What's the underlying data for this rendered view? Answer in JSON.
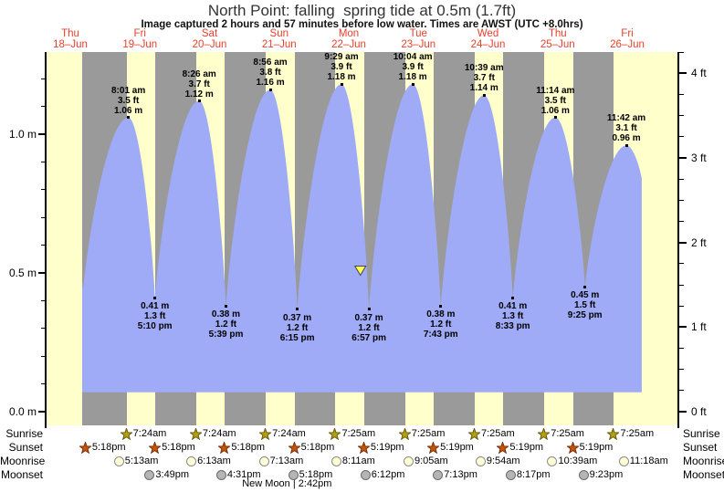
{
  "header": {
    "title": "North Point: falling  spring tide at 0.5m (1.7ft)",
    "subtitle": "Image captured 2 hours and 57 minutes before low water. Times are AWST (UTC +8.0hrs)"
  },
  "chart_data": {
    "type": "area",
    "title": "North Point: falling  spring tide at 0.5m (1.7ft)",
    "days": [
      {
        "name": "Thu",
        "date": "18–Jun"
      },
      {
        "name": "Fri",
        "date": "19–Jun"
      },
      {
        "name": "Sat",
        "date": "20–Jun"
      },
      {
        "name": "Sun",
        "date": "21–Jun"
      },
      {
        "name": "Mon",
        "date": "22–Jun"
      },
      {
        "name": "Tue",
        "date": "23–Jun"
      },
      {
        "name": "Wed",
        "date": "24–Jun"
      },
      {
        "name": "Thu",
        "date": "25–Jun"
      },
      {
        "name": "Fri",
        "date": "26–Jun"
      }
    ],
    "y_axis_left": {
      "unit": "m",
      "major_ticks": [
        0,
        0.5,
        1.0
      ],
      "labels": [
        "0.0 m",
        "0.5 m",
        "1.0 m"
      ],
      "minor_step": 0.1
    },
    "y_axis_right": {
      "unit": "ft",
      "major_ticks": [
        0,
        1,
        2,
        3,
        4
      ],
      "labels": [
        "0 ft",
        "1 ft",
        "2 ft",
        "3 ft",
        "4 ft"
      ],
      "minor_step": 0.25
    },
    "ylim_m": [
      -0.05,
      1.3
    ],
    "series_start": {
      "day": 0,
      "time": "4:05 pm",
      "m": 0.47
    },
    "series_end": {
      "day": 8,
      "time": "5:00 pm",
      "m": 0.84
    },
    "water_base_m": 0.07,
    "tide_events": [
      {
        "kind": "low",
        "day": 0,
        "time": "4:25 pm",
        "m": 0.44,
        "ft": 1.4,
        "annotated": false
      },
      {
        "kind": "high",
        "day": 1,
        "time": "8:01 am",
        "m": 1.06,
        "ft": 3.5,
        "annotated": true
      },
      {
        "kind": "low",
        "day": 1,
        "time": "5:10 pm",
        "m": 0.41,
        "ft": 1.3,
        "annotated": true
      },
      {
        "kind": "high",
        "day": 2,
        "time": "8:26 am",
        "m": 1.12,
        "ft": 3.7,
        "annotated": true
      },
      {
        "kind": "low",
        "day": 2,
        "time": "5:39 pm",
        "m": 0.38,
        "ft": 1.2,
        "annotated": true
      },
      {
        "kind": "high",
        "day": 3,
        "time": "8:56 am",
        "m": 1.16,
        "ft": 3.8,
        "annotated": true
      },
      {
        "kind": "low",
        "day": 3,
        "time": "6:15 pm",
        "m": 0.37,
        "ft": 1.2,
        "annotated": true
      },
      {
        "kind": "high",
        "day": 4,
        "time": "9:29 am",
        "m": 1.18,
        "ft": 3.9,
        "annotated": true
      },
      {
        "kind": "low",
        "day": 4,
        "time": "6:57 pm",
        "m": 0.37,
        "ft": 1.2,
        "annotated": true
      },
      {
        "kind": "high",
        "day": 5,
        "time": "10:04 am",
        "m": 1.18,
        "ft": 3.9,
        "annotated": true
      },
      {
        "kind": "low",
        "day": 5,
        "time": "7:43 pm",
        "m": 0.38,
        "ft": 1.2,
        "annotated": true
      },
      {
        "kind": "high",
        "day": 6,
        "time": "10:39 am",
        "m": 1.14,
        "ft": 3.7,
        "annotated": true
      },
      {
        "kind": "low",
        "day": 6,
        "time": "8:33 pm",
        "m": 0.41,
        "ft": 1.3,
        "annotated": true
      },
      {
        "kind": "high",
        "day": 7,
        "time": "11:14 am",
        "m": 1.06,
        "ft": 3.5,
        "annotated": true
      },
      {
        "kind": "low",
        "day": 7,
        "time": "9:25 pm",
        "m": 0.45,
        "ft": 1.5,
        "annotated": true
      },
      {
        "kind": "high",
        "day": 8,
        "time": "11:42 am",
        "m": 0.96,
        "ft": 3.1,
        "annotated": true
      }
    ],
    "current_marker": {
      "day": 4,
      "time": "4:00 pm",
      "m": 0.51
    }
  },
  "almanac": {
    "row_labels": [
      "Sunrise",
      "Sunset",
      "Moonrise",
      "Moonset"
    ],
    "sunrise": [
      {
        "day": 1,
        "time": "7:24am"
      },
      {
        "day": 2,
        "time": "7:24am"
      },
      {
        "day": 3,
        "time": "7:24am"
      },
      {
        "day": 4,
        "time": "7:25am"
      },
      {
        "day": 5,
        "time": "7:25am"
      },
      {
        "day": 6,
        "time": "7:25am"
      },
      {
        "day": 7,
        "time": "7:25am"
      },
      {
        "day": 8,
        "time": "7:25am"
      }
    ],
    "sunset": [
      {
        "day": 0,
        "time": "5:18pm"
      },
      {
        "day": 1,
        "time": "5:18pm"
      },
      {
        "day": 2,
        "time": "5:18pm"
      },
      {
        "day": 3,
        "time": "5:18pm"
      },
      {
        "day": 4,
        "time": "5:19pm"
      },
      {
        "day": 5,
        "time": "5:19pm"
      },
      {
        "day": 6,
        "time": "5:19pm"
      },
      {
        "day": 7,
        "time": "5:19pm"
      }
    ],
    "moonrise": [
      {
        "day": 1,
        "time": "5:13am"
      },
      {
        "day": 2,
        "time": "6:13am"
      },
      {
        "day": 3,
        "time": "7:13am"
      },
      {
        "day": 4,
        "time": "8:11am"
      },
      {
        "day": 5,
        "time": "9:05am"
      },
      {
        "day": 6,
        "time": "9:54am"
      },
      {
        "day": 7,
        "time": "10:39am"
      },
      {
        "day": 8,
        "time": "11:18am"
      }
    ],
    "moonset": [
      {
        "day": 1,
        "time": "3:49pm"
      },
      {
        "day": 2,
        "time": "4:31pm"
      },
      {
        "day": 3,
        "time": "5:18pm"
      },
      {
        "day": 4,
        "time": "6:12pm"
      },
      {
        "day": 5,
        "time": "7:13pm"
      },
      {
        "day": 6,
        "time": "8:17pm"
      },
      {
        "day": 7,
        "time": "9:23pm"
      }
    ],
    "new_moon": {
      "label": "New Moon",
      "time": "2:42pm",
      "day": 3
    }
  },
  "colors": {
    "daylight": "#ffffcc",
    "night": "#9a9a9a",
    "water": "#9fabf7",
    "day_label": "#e8402c",
    "marker_fill": "#ffff55",
    "sunrise_star": "#b3a013",
    "sunrise_star_edge": "#5f5407",
    "sunset_star": "#c5530a",
    "sunset_star_edge": "#702c05",
    "moonrise_fill": "#ffffd6",
    "moonrise_edge": "#8a8a8a",
    "moonset_fill": "#b5b5b5",
    "moonset_edge": "#6b6b6b"
  }
}
